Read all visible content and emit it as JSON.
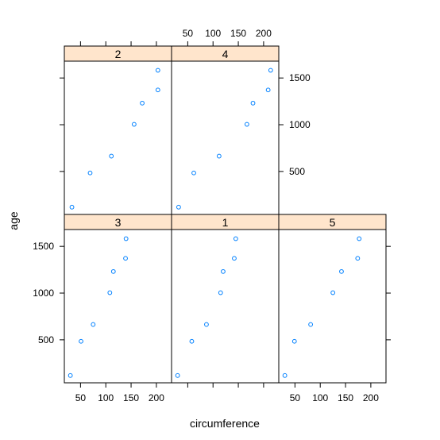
{
  "chart_data": {
    "type": "scatter",
    "layout": "lattice 3 columns x 2 rows, panels ordered bottom-left first",
    "xlabel": "circumference",
    "ylabel": "age",
    "xlim": [
      18,
      230
    ],
    "ylim": [
      40,
      1680
    ],
    "x_ticks": [
      50,
      100,
      150,
      200
    ],
    "y_ticks": [
      500,
      1000,
      1500
    ],
    "x_tick_labels": [
      "50",
      "100",
      "150",
      "200"
    ],
    "y_tick_labels": [
      "500",
      "1000",
      "1500"
    ],
    "grid": false,
    "colors": {
      "point": "#0080ff",
      "strip": "#ffe5cc",
      "axis": "#000000"
    },
    "panels": [
      {
        "label": "3",
        "x": [
          30,
          51,
          75,
          108,
          115,
          139,
          140
        ],
        "y": [
          118,
          484,
          664,
          1004,
          1231,
          1372,
          1582
        ]
      },
      {
        "label": "1",
        "x": [
          30,
          58,
          87,
          115,
          120,
          142,
          145
        ],
        "y": [
          118,
          484,
          664,
          1004,
          1231,
          1372,
          1582
        ]
      },
      {
        "label": "5",
        "x": [
          30,
          49,
          81,
          125,
          142,
          174,
          177
        ],
        "y": [
          118,
          484,
          664,
          1004,
          1231,
          1372,
          1582
        ]
      },
      {
        "label": "2",
        "x": [
          33,
          69,
          111,
          156,
          172,
          203,
          203
        ],
        "y": [
          118,
          484,
          664,
          1004,
          1231,
          1372,
          1582
        ]
      },
      {
        "label": "4",
        "x": [
          32,
          62,
          112,
          167,
          179,
          209,
          214
        ],
        "y": [
          118,
          484,
          664,
          1004,
          1231,
          1372,
          1582
        ]
      }
    ]
  }
}
